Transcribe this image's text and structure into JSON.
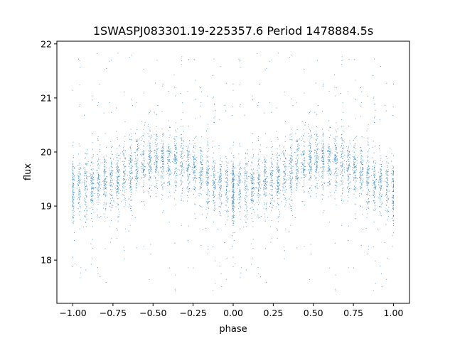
{
  "chart_data": {
    "type": "scatter",
    "title": "1SWASPJ083301.19-225357.6 Period 1478884.5s",
    "xlabel": "phase",
    "ylabel": "flux",
    "xlim": [
      -1.1,
      1.1
    ],
    "ylim": [
      17.2,
      22.05
    ],
    "xticks": [
      -1.0,
      -0.75,
      -0.5,
      -0.25,
      0.0,
      0.25,
      0.5,
      0.75,
      1.0
    ],
    "xtick_labels": [
      "−1.00",
      "−0.75",
      "−0.50",
      "−0.25",
      "0.00",
      "0.25",
      "0.50",
      "0.75",
      "1.00"
    ],
    "yticks": [
      18,
      19,
      20,
      21,
      22
    ],
    "ytick_labels": [
      "18",
      "19",
      "20",
      "21",
      "22"
    ],
    "grid": false,
    "marker_color": "#1f77b4",
    "phase_range": [
      -1.0,
      1.0
    ],
    "light_curve_envelope": {
      "phase": [
        0.0,
        0.1,
        0.2,
        0.3,
        0.4,
        0.5,
        0.6,
        0.7,
        0.8,
        0.9,
        1.0
      ],
      "median_flux": [
        19.25,
        19.4,
        19.45,
        19.5,
        19.75,
        19.85,
        19.8,
        19.8,
        19.6,
        19.45,
        19.25
      ]
    },
    "cluster_phases": [
      0.0,
      0.04,
      0.08,
      0.12,
      0.16,
      0.2,
      0.24,
      0.28,
      0.32,
      0.36,
      0.4,
      0.44,
      0.48,
      0.52,
      0.56,
      0.6,
      0.64,
      0.68,
      0.72,
      0.76,
      0.8,
      0.84,
      0.88,
      0.92,
      0.96,
      1.0
    ],
    "upper_outlier_flux_max": 21.85,
    "lower_outlier_flux_min": 17.4
  }
}
